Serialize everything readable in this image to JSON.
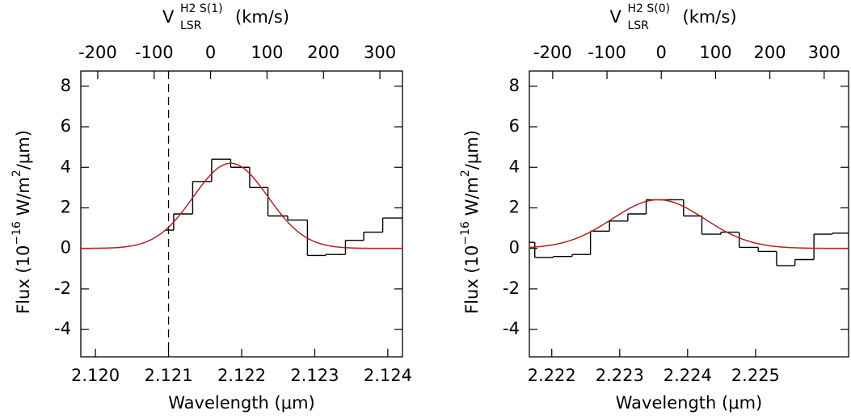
{
  "chart_data": [
    {
      "type": "histogram",
      "top_label": {
        "main": "V",
        "sup": "H2 S(1)",
        "sub": "LSR",
        "unit": "(km/s)"
      },
      "ylabel": {
        "pre": "Flux (10",
        "exp": "−16",
        "mid": " W/m",
        "sq": "2",
        "post": "/μm)"
      },
      "xlabel": "Wavelength (μm)",
      "bins": [
        2.12095,
        2.12107,
        2.12133,
        2.12159,
        2.12185,
        2.12211,
        2.12236,
        2.12263,
        2.1229,
        2.12315,
        2.12342,
        2.12367,
        2.12393,
        2.1242
      ],
      "values": [
        0.9,
        1.7,
        3.3,
        4.4,
        4.0,
        3.0,
        1.6,
        1.4,
        -0.35,
        -0.3,
        0.4,
        0.8,
        1.5
      ],
      "color": "#000000",
      "fit": {
        "amplitude": 4.2,
        "center": 2.12185,
        "sigma": 0.00051,
        "color": "#b22222"
      },
      "vline": 2.121,
      "xlim": [
        2.1198,
        2.1242
      ],
      "xticks": [
        {
          "value": 2.12,
          "label": "2.120"
        },
        2.121,
        2.122,
        2.123,
        2.124
      ],
      "x2lim": [
        -230,
        340
      ],
      "x2ticks": [
        -200,
        -100,
        0,
        100,
        200,
        300
      ],
      "ylim": [
        -5.35,
        8.75
      ],
      "yticks": [
        -4,
        -2,
        0,
        2,
        4,
        6,
        8
      ]
    },
    {
      "type": "histogram",
      "top_label": {
        "main": "V",
        "sup": "H2 S(0)",
        "sub": "LSR",
        "unit": "(km/s)"
      },
      "ylabel": {
        "pre": "Flux (10",
        "exp": "−16",
        "mid": " W/m",
        "sq": "2",
        "post": "/μm)"
      },
      "xlabel": "Wavelength (μm)",
      "bins": [
        2.22167,
        2.22175,
        2.22202,
        2.2223,
        2.22257,
        2.22285,
        2.22312,
        2.22339,
        2.22367,
        2.22394,
        2.22421,
        2.22449,
        2.22476,
        2.22504,
        2.22531,
        2.22558,
        2.22586,
        2.22613,
        2.22637
      ],
      "values": [
        0.3,
        -0.45,
        -0.4,
        -0.3,
        0.85,
        1.35,
        1.7,
        2.4,
        2.4,
        1.6,
        0.7,
        0.8,
        0.05,
        -0.15,
        -0.85,
        -0.55,
        0.7,
        0.75
      ],
      "color": "#000000",
      "fit": {
        "amplitude": 2.4,
        "center": 2.22357,
        "sigma": 0.00068,
        "color": "#b22222"
      },
      "xlim": [
        2.22167,
        2.22637
      ],
      "xticks": [
        2.222,
        2.223,
        2.224,
        2.225
      ],
      "x2lim": [
        -243,
        345
      ],
      "x2ticks": [
        -200,
        -100,
        0,
        100,
        200,
        300
      ],
      "ylim": [
        -5.35,
        8.75
      ],
      "yticks": [
        -4,
        -2,
        0,
        2,
        4,
        6,
        8
      ]
    }
  ]
}
